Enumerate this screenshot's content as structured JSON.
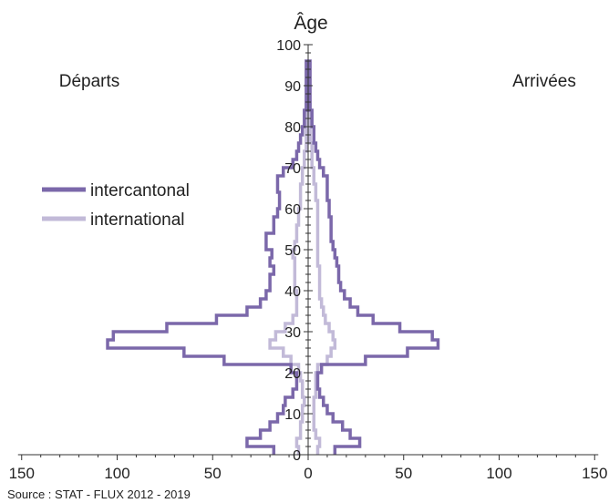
{
  "chart_data": {
    "type": "population-pyramid",
    "title": "Âge",
    "left_label": "Départs",
    "right_label": "Arrivées",
    "source": "Source : STAT - FLUX 2012 - 2019",
    "y_range": [
      0,
      100
    ],
    "y_ticks": [
      0,
      10,
      20,
      30,
      40,
      50,
      60,
      70,
      80,
      90,
      100
    ],
    "x_range": [
      -150,
      150
    ],
    "x_ticks": [
      {
        "value": -150,
        "label": "150"
      },
      {
        "value": -100,
        "label": "100"
      },
      {
        "value": -50,
        "label": "50"
      },
      {
        "value": 0,
        "label": "0"
      },
      {
        "value": 50,
        "label": "50"
      },
      {
        "value": 100,
        "label": "100"
      },
      {
        "value": 150,
        "label": "150"
      }
    ],
    "legend": {
      "position": "left"
    },
    "series": [
      {
        "name": "intercantonal",
        "color": "#7b68aa",
        "ages": [
          0,
          2,
          4,
          6,
          8,
          10,
          12,
          14,
          16,
          18,
          20,
          22,
          24,
          26,
          28,
          30,
          32,
          34,
          36,
          38,
          40,
          42,
          44,
          46,
          48,
          50,
          52,
          54,
          56,
          58,
          60,
          62,
          64,
          66,
          68,
          70,
          72,
          74,
          76,
          78,
          80,
          82,
          84,
          86,
          88,
          90,
          92,
          94
        ],
        "departures": [
          18,
          32,
          25,
          20,
          16,
          13,
          12,
          8,
          6,
          6,
          9,
          44,
          65,
          105,
          102,
          74,
          48,
          32,
          25,
          22,
          20,
          20,
          18,
          20,
          19,
          22,
          22,
          18,
          18,
          16,
          15,
          15,
          16,
          16,
          13,
          8,
          6,
          5,
          4,
          3,
          2,
          2,
          1,
          1,
          1,
          1,
          1,
          1
        ],
        "arrivals": [
          14,
          27,
          22,
          18,
          13,
          10,
          8,
          6,
          5,
          5,
          7,
          30,
          52,
          68,
          65,
          48,
          34,
          26,
          22,
          19,
          17,
          16,
          16,
          15,
          14,
          13,
          12,
          12,
          12,
          11,
          11,
          10,
          10,
          10,
          8,
          6,
          5,
          4,
          3,
          3,
          2,
          2,
          1,
          1,
          1,
          1,
          1,
          1
        ]
      },
      {
        "name": "international",
        "color": "#c2bad8",
        "ages": [
          0,
          2,
          4,
          6,
          8,
          10,
          12,
          14,
          16,
          18,
          20,
          22,
          24,
          26,
          28,
          30,
          32,
          34,
          36,
          38,
          40,
          42,
          44,
          46,
          48,
          50,
          52,
          54,
          56,
          58,
          60,
          62,
          64,
          66,
          68,
          70,
          72,
          74,
          76,
          78,
          80,
          82,
          84
        ],
        "departures": [
          5,
          6,
          4,
          4,
          3,
          3,
          2,
          3,
          3,
          4,
          5,
          9,
          13,
          20,
          17,
          12,
          8,
          6,
          6,
          6,
          7,
          7,
          7,
          7,
          8,
          7,
          6,
          6,
          5,
          5,
          4,
          4,
          4,
          3,
          3,
          2,
          2,
          1,
          1,
          1,
          1,
          1,
          1
        ],
        "arrivals": [
          5,
          6,
          4,
          3,
          3,
          3,
          3,
          4,
          4,
          4,
          5,
          10,
          12,
          14,
          13,
          11,
          9,
          8,
          7,
          6,
          6,
          6,
          6,
          5,
          5,
          5,
          5,
          5,
          5,
          5,
          5,
          4,
          4,
          3,
          3,
          2,
          2,
          2,
          1,
          1,
          1,
          1,
          1
        ]
      }
    ]
  }
}
